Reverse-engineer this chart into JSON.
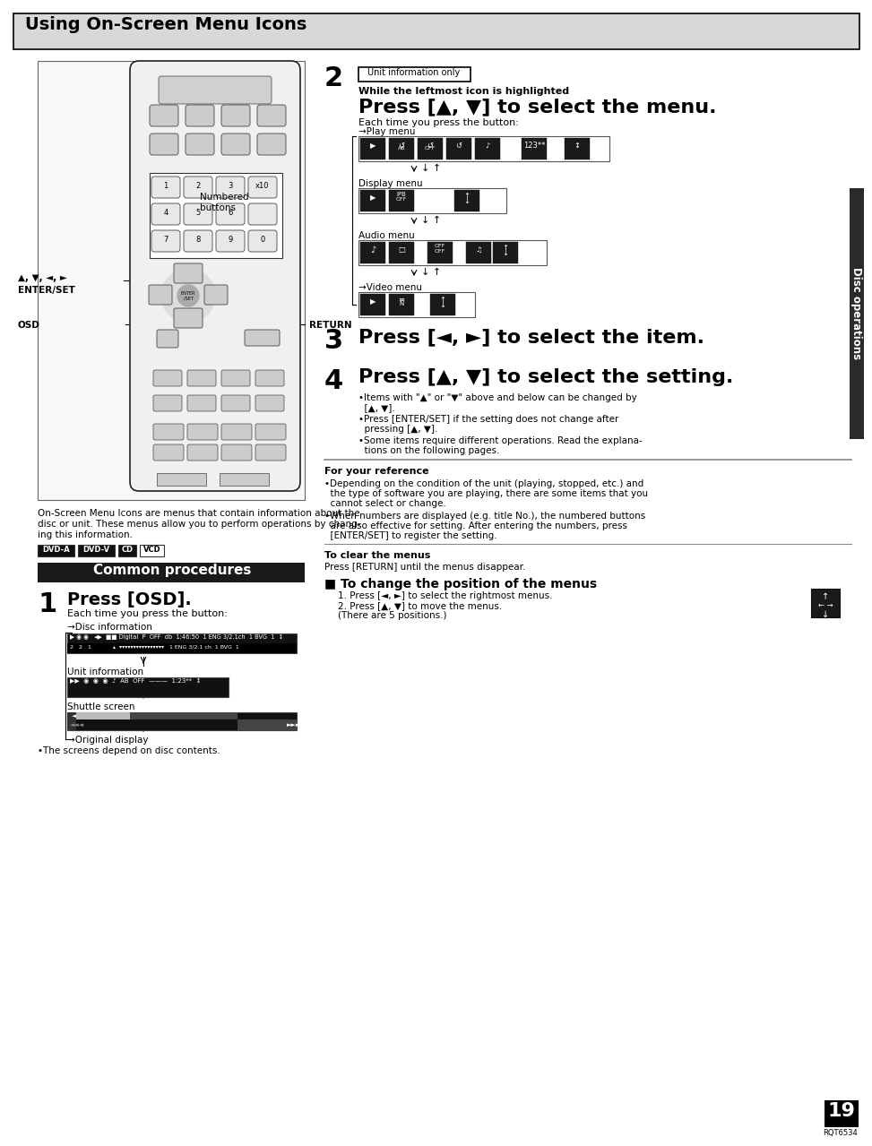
{
  "title": "Using On-Screen Menu Icons",
  "bg_color": "#ffffff",
  "section_bar_color": "#1a1a1a",
  "section_text": "Common procedures",
  "section_text_color": "#ffffff",
  "right_tab_color": "#2a2a2a",
  "right_tab_text": "Disc operations",
  "page_number": "19",
  "page_code": "RQT6534",
  "step1_label": "1",
  "step1_title": "Press [OSD].",
  "step1_sub": "Each time you press the button:",
  "step2_label": "2",
  "step2_tag": "Unit information only",
  "step2_sub1": "While the leftmost icon is highlighted",
  "step2_title": "Press [▲, ▼] to select the menu.",
  "step2_sub2": "Each time you press the button:",
  "step3_label": "3",
  "step3_title": "Press [◄, ►] to select the item.",
  "step4_label": "4",
  "step4_title": "Press [▲, ▼] to select the setting.",
  "step4_b1a": "•Items with \"▲\" or \"▼\" above and below can be changed by",
  "step4_b1b": "  [▲, ▼].",
  "step4_b2a": "•Press [ENTER/SET] if the setting does not change after",
  "step4_b2b": "  pressing [▲, ▼].",
  "step4_b3a": "•Some items require different operations. Read the explana-",
  "step4_b3b": "  tions on the following pages.",
  "ref_title": "For your reference",
  "ref_b1a": "•Depending on the condition of the unit (playing, stopped, etc.) and",
  "ref_b1b": "  the type of software you are playing, there are some items that you",
  "ref_b1c": "  cannot select or change.",
  "ref_b2a": "•When numbers are displayed (e.g. title No.), the numbered buttons",
  "ref_b2b": "  are also effective for setting. After entering the numbers, press",
  "ref_b2c": "  [ENTER/SET] to register the setting.",
  "clear_title": "To clear the menus",
  "clear_text": "Press [RETURN] until the menus disappear.",
  "change_title": "■ To change the position of the menus",
  "change_item1": "1. Press [◄, ►] to select the rightmost menus.",
  "change_item2": "2. Press [▲, ▼] to move the menus.",
  "change_item3": "(There are 5 positions.)",
  "disc_info_label": "→Disc information",
  "unit_info_label": "Unit information",
  "shuttle_label": "Shuttle screen",
  "orig_label": "→Original display",
  "orig_note": "•The screens depend on disc contents.",
  "play_menu_label": "→Play menu",
  "display_menu_label": "Display menu",
  "audio_menu_label": "Audio menu",
  "video_menu_label": "→Video menu",
  "caption1": "On-Screen Menu Icons are menus that contain information about the",
  "caption2": "disc or unit. These menus allow you to perform operations by chang-",
  "caption3": "ing this information.",
  "note_numbered": "Numbered\nbuttons",
  "note_arrows": "▲, ▼, ◄, ►",
  "note_enter": "ENTER/SET",
  "note_osd": "OSD",
  "note_return": "RETURN"
}
